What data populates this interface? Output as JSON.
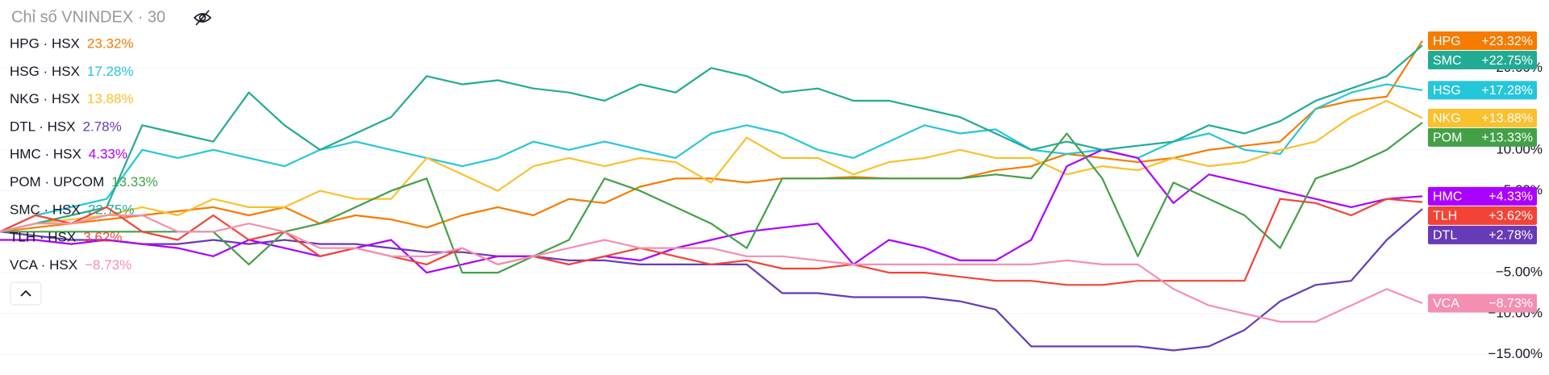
{
  "chart_data": {
    "type": "line",
    "title": "Chỉ số VNINDEX · 30",
    "ylim": [
      -17.5,
      28.3
    ],
    "yticks": [
      {
        "value": 20,
        "label": "20.00%"
      },
      {
        "value": 10,
        "label": "10.00%"
      },
      {
        "value": 5,
        "label": "5.00%"
      },
      {
        "value": -5,
        "label": "−5.00%"
      },
      {
        "value": -10,
        "label": "−10.00%"
      },
      {
        "value": -15,
        "label": "−15.00%"
      }
    ],
    "grid": true,
    "series": [
      {
        "name": "HPG · HSX",
        "ticker": "HPG",
        "color": "#f57c00",
        "value_label": "23.32%",
        "badge_label": "+23.32%",
        "values": [
          0,
          0.5,
          1,
          1.5,
          2,
          2.5,
          3,
          2,
          3,
          1,
          2,
          1.5,
          0.5,
          2,
          3,
          2,
          4,
          3.5,
          5.5,
          6.5,
          6.5,
          6,
          6.5,
          6.5,
          6.7,
          6.5,
          6.5,
          6.5,
          7.5,
          8,
          9.5,
          9,
          8.5,
          9,
          10,
          10.5,
          11,
          15,
          16,
          16.5,
          23.32
        ]
      },
      {
        "name": "HSG · HSX",
        "ticker": "HSG",
        "color": "#26c6da",
        "value_label": "17.28%",
        "badge_label": "+17.28%",
        "values": [
          0,
          2,
          3,
          4,
          10,
          9,
          10,
          9,
          8,
          10,
          11,
          10,
          9,
          8,
          9,
          11,
          10,
          11,
          10,
          9,
          12,
          13,
          12,
          10,
          9,
          11,
          13,
          12,
          12.5,
          10,
          9.5,
          10,
          9,
          11,
          12,
          10,
          9.5,
          15,
          17,
          18,
          17.28
        ]
      },
      {
        "name": "NKG · HSX",
        "ticker": "NKG",
        "color": "#fbc02d",
        "value_label": "13.88%",
        "badge_label": "+13.88%",
        "values": [
          0,
          1,
          1.5,
          2,
          3,
          2,
          4,
          3,
          3,
          5,
          4,
          4,
          9,
          7,
          5,
          8,
          9,
          8,
          9,
          8.5,
          6,
          11.5,
          9,
          9,
          7,
          8.5,
          9,
          10,
          9,
          9,
          7,
          8,
          7.5,
          9,
          8,
          8.5,
          10,
          11,
          14,
          16,
          13.88
        ]
      },
      {
        "name": "DTL · HSX",
        "ticker": "DTL",
        "color": "#673ab7",
        "value_label": "2.78%",
        "badge_label": "+2.78%",
        "values": [
          0,
          -0.5,
          -1,
          -1,
          -1.5,
          -1.5,
          -1,
          -1.5,
          -1,
          -1.5,
          -1.5,
          -2,
          -2.5,
          -2.5,
          -3,
          -3,
          -3.5,
          -3.5,
          -4,
          -4,
          -4,
          -4,
          -7.5,
          -7.5,
          -8,
          -8,
          -8,
          -8.5,
          -9.5,
          -14,
          -14,
          -14,
          -14,
          -14.5,
          -14,
          -12,
          -8.5,
          -6.5,
          -6,
          -1,
          2.78
        ]
      },
      {
        "name": "HMC · HSX",
        "ticker": "HMC",
        "color": "#aa00ff",
        "value_label": "4.33%",
        "badge_label": "+4.33%",
        "values": [
          -1,
          -1,
          -1.5,
          -1,
          -1.5,
          -2,
          -3,
          -1,
          -2,
          -3,
          -2,
          -1,
          -5,
          -4,
          -3,
          -3,
          -4,
          -3,
          -3.5,
          -2,
          -1,
          0,
          0.5,
          1,
          -4,
          -1,
          -2,
          -3.5,
          -3.5,
          -1,
          8,
          10,
          9,
          3.5,
          7,
          6,
          5,
          4,
          3,
          4,
          4.33
        ]
      },
      {
        "name": "POM · UPCOM",
        "ticker": "POM",
        "color": "#43a047",
        "value_label": "13.33%",
        "badge_label": "+13.33%",
        "values": [
          0,
          0,
          0,
          0,
          0,
          0,
          0,
          -4,
          0,
          1,
          3,
          5,
          6.5,
          -5,
          -5,
          -3,
          -1,
          6.5,
          5,
          3,
          1,
          -2,
          6.5,
          6.5,
          6.5,
          6.5,
          6.5,
          6.5,
          7,
          6.5,
          12,
          6.5,
          -3,
          6,
          4,
          2,
          -2,
          6.5,
          8,
          10,
          13.33
        ]
      },
      {
        "name": "SMC · HSX",
        "ticker": "SMC",
        "color": "#22ab94",
        "value_label": "22.75%",
        "badge_label": "+22.75%",
        "values": [
          0,
          1,
          2,
          3,
          13,
          12,
          11,
          17,
          13,
          10,
          12,
          14,
          19,
          18,
          18.5,
          17.5,
          17,
          16,
          18,
          17,
          20,
          19,
          17,
          17.5,
          16,
          16,
          15,
          14,
          12,
          10,
          11,
          10,
          10.5,
          11,
          13,
          12,
          13.5,
          16,
          17.5,
          19,
          22.75
        ]
      },
      {
        "name": "TLH · HSX",
        "ticker": "TLH",
        "color": "#f44336",
        "value_label": "3.62%",
        "badge_label": "+3.62%",
        "values": [
          0,
          2,
          1,
          3,
          0,
          -1,
          2,
          -1,
          0,
          -3,
          -2,
          -3,
          -4,
          -2,
          -4,
          -3,
          -4,
          -3,
          -2,
          -3,
          -4,
          -3.5,
          -4.5,
          -4.5,
          -4,
          -5,
          -5,
          -5.5,
          -6,
          -6,
          -6.5,
          -6.5,
          -6,
          -6,
          -6,
          -6,
          4,
          3.5,
          2,
          4,
          3.62
        ]
      },
      {
        "name": "VCA · HSX",
        "ticker": "VCA",
        "color": "#f48fb1",
        "value_label": "−8.73%",
        "badge_label": "−8.73%",
        "values": [
          0,
          1,
          1,
          2,
          2,
          0,
          0,
          1,
          0,
          -2,
          -2,
          -3,
          -3,
          -2,
          -4,
          -3,
          -2,
          -1,
          -2,
          -2,
          -2,
          -3,
          -3,
          -3.5,
          -4,
          -4,
          -4,
          -4,
          -4,
          -4,
          -3.5,
          -4,
          -4,
          -7,
          -9,
          -10,
          -11,
          -11,
          -9,
          -7,
          -8.73
        ]
      }
    ]
  }
}
